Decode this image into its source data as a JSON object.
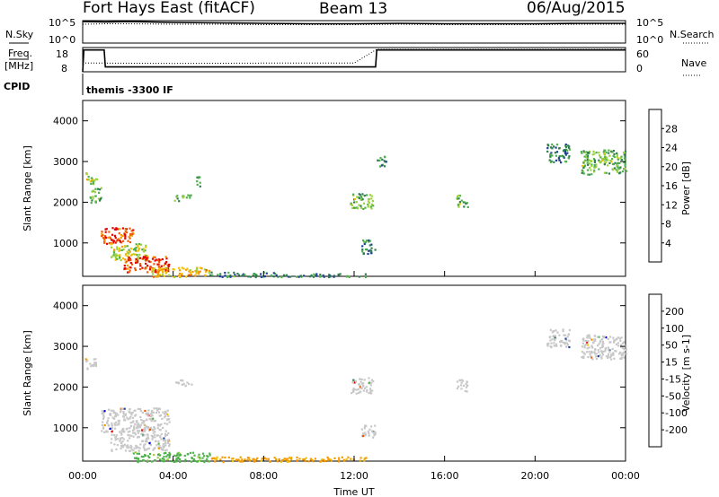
{
  "header": {
    "station": "Fort Hays East (fitACF)",
    "beam": "Beam 13",
    "date": "06/Aug/2015"
  },
  "top_panels": {
    "nsky_label": "N.Sky",
    "nsearch_label": "N.Search",
    "noise_ticks": [
      "10^5",
      "10^0"
    ],
    "freq_label_line1": "Freq.",
    "freq_label_line2": "[MHz]",
    "freq_ticks": [
      "18",
      "8"
    ],
    "nave_label": "Nave",
    "nave_ticks": [
      "60",
      "0"
    ],
    "cpid_label": "CPID",
    "cpid_text": "themis -3300 IF"
  },
  "x_axis": {
    "label": "Time UT",
    "ticks": [
      "00:00",
      "04:00",
      "08:00",
      "12:00",
      "16:00",
      "20:00",
      "00:00"
    ]
  },
  "colors": {
    "power_scale": [
      "#0000ff",
      "#1e3f9a",
      "#2e7d4f",
      "#4fb04c",
      "#9ad23c",
      "#f2c200",
      "#f49a00",
      "#f05a00",
      "#e60000"
    ],
    "velocity_scale": [
      "#e60000",
      "#f05a00",
      "#f49a00",
      "#f2c200",
      "#c8c8c8",
      "#c8c8c8",
      "#4fb04c",
      "#2e7d4f",
      "#1e3f9a",
      "#0000c8"
    ]
  },
  "chart_data": [
    {
      "type": "line",
      "title": "",
      "name": "noise-panel",
      "x_range_hours": [
        0,
        24
      ],
      "series": [
        {
          "name": "N.Sky",
          "x": [
            0,
            1,
            2,
            4,
            6,
            8,
            10,
            12,
            14,
            16,
            18,
            20,
            22,
            24
          ],
          "y_log10": [
            4.8,
            4.7,
            4.8,
            4.6,
            4.5,
            4.4,
            4.3,
            4.3,
            4.4,
            4.3,
            4.3,
            4.3,
            4.4,
            4.4
          ]
        },
        {
          "name": "N.Search",
          "x": [
            0,
            1,
            2,
            4,
            6,
            8,
            10,
            12,
            14,
            16,
            18,
            20,
            22,
            24
          ],
          "y_log10": [
            4.2,
            4.3,
            4.3,
            4.2,
            4.2,
            4.1,
            4.1,
            4.1,
            4.2,
            4.1,
            4.1,
            4.1,
            4.2,
            4.2
          ]
        }
      ],
      "ylim_log10": [
        0,
        5
      ]
    },
    {
      "type": "line",
      "title": "",
      "name": "freq-nave-panel",
      "x_range_hours": [
        0,
        24
      ],
      "series": [
        {
          "name": "Freq",
          "x": [
            0,
            0.05,
            0.95,
            1.0,
            12.95,
            13.0,
            24
          ],
          "y": [
            8,
            17,
            17,
            10,
            10,
            17,
            17
          ]
        },
        {
          "name": "Nave",
          "x": [
            0,
            1,
            4,
            8,
            12,
            13,
            16,
            20,
            24
          ],
          "y": [
            20,
            20,
            19,
            20,
            20,
            60,
            60,
            60,
            60
          ]
        }
      ],
      "ylim": [
        8,
        18
      ]
    },
    {
      "type": "heatmap",
      "title": "",
      "xlabel": "Time UT",
      "ylabel": "Slant Range [km]",
      "colorbar_label": "Power [dB]",
      "colorbar_ticks": [
        4,
        8,
        12,
        16,
        20,
        24,
        28
      ],
      "x_range_hours": [
        0,
        24
      ],
      "yticks": [
        1000,
        2000,
        3000,
        4000
      ],
      "ylim": [
        180,
        4500
      ],
      "clusters": [
        {
          "t0": 0.1,
          "t1": 0.6,
          "r0": 2450,
          "r1": 2750,
          "level": 16
        },
        {
          "t0": 0.3,
          "t1": 0.8,
          "r0": 2000,
          "r1": 2400,
          "level": 12
        },
        {
          "t0": 0.8,
          "t1": 2.2,
          "r0": 1000,
          "r1": 1400,
          "level": 28
        },
        {
          "t0": 1.2,
          "t1": 2.8,
          "r0": 600,
          "r1": 1000,
          "level": 16
        },
        {
          "t0": 1.8,
          "t1": 3.8,
          "r0": 300,
          "r1": 700,
          "level": 28
        },
        {
          "t0": 3.0,
          "t1": 5.6,
          "r0": 180,
          "r1": 420,
          "level": 20
        },
        {
          "t0": 5.6,
          "t1": 8.5,
          "r0": 180,
          "r1": 300,
          "level": 8
        },
        {
          "t0": 8.5,
          "t1": 12.5,
          "r0": 180,
          "r1": 260,
          "level": 8
        },
        {
          "t0": 4.0,
          "t1": 4.8,
          "r0": 2050,
          "r1": 2200,
          "level": 12
        },
        {
          "t0": 5.0,
          "t1": 5.2,
          "r0": 2400,
          "r1": 2700,
          "level": 8
        },
        {
          "t0": 11.8,
          "t1": 12.8,
          "r0": 1850,
          "r1": 2250,
          "level": 12
        },
        {
          "t0": 12.3,
          "t1": 12.9,
          "r0": 750,
          "r1": 1100,
          "level": 8
        },
        {
          "t0": 13.0,
          "t1": 13.4,
          "r0": 2900,
          "r1": 3200,
          "level": 8
        },
        {
          "t0": 16.5,
          "t1": 17.0,
          "r0": 1900,
          "r1": 2200,
          "level": 12
        },
        {
          "t0": 20.5,
          "t1": 21.5,
          "r0": 3000,
          "r1": 3450,
          "level": 8
        },
        {
          "t0": 22.0,
          "t1": 24.0,
          "r0": 2700,
          "r1": 3300,
          "level": 12
        }
      ]
    },
    {
      "type": "heatmap",
      "title": "",
      "xlabel": "Time UT",
      "ylabel": "Slant Range [km]",
      "colorbar_label": "Velocity [m s-1]",
      "colorbar_ticks": [
        -200,
        -100,
        -50,
        -15,
        15,
        50,
        100,
        200
      ],
      "x_range_hours": [
        0,
        24
      ],
      "yticks": [
        1000,
        2000,
        3000,
        4000
      ],
      "ylim": [
        180,
        4500
      ],
      "clusters": [
        {
          "t0": 0.1,
          "t1": 0.6,
          "r0": 2450,
          "r1": 2750,
          "level": 0
        },
        {
          "t0": 0.8,
          "t1": 3.8,
          "r0": 900,
          "r1": 1500,
          "level": 0
        },
        {
          "t0": 1.2,
          "t1": 3.8,
          "r0": 450,
          "r1": 900,
          "level": 0
        },
        {
          "t0": 2.2,
          "t1": 5.6,
          "r0": 180,
          "r1": 420,
          "level": 50
        },
        {
          "t0": 5.6,
          "t1": 12.5,
          "r0": 180,
          "r1": 300,
          "level": -50
        },
        {
          "t0": 4.0,
          "t1": 4.8,
          "r0": 2050,
          "r1": 2200,
          "level": 0
        },
        {
          "t0": 11.8,
          "t1": 12.8,
          "r0": 1850,
          "r1": 2250,
          "level": 0
        },
        {
          "t0": 12.3,
          "t1": 12.9,
          "r0": 750,
          "r1": 1100,
          "level": 0
        },
        {
          "t0": 16.5,
          "t1": 17.0,
          "r0": 1900,
          "r1": 2200,
          "level": 0
        },
        {
          "t0": 20.5,
          "t1": 21.5,
          "r0": 3000,
          "r1": 3450,
          "level": 0
        },
        {
          "t0": 22.0,
          "t1": 24.0,
          "r0": 2700,
          "r1": 3300,
          "level": 0
        }
      ]
    }
  ]
}
